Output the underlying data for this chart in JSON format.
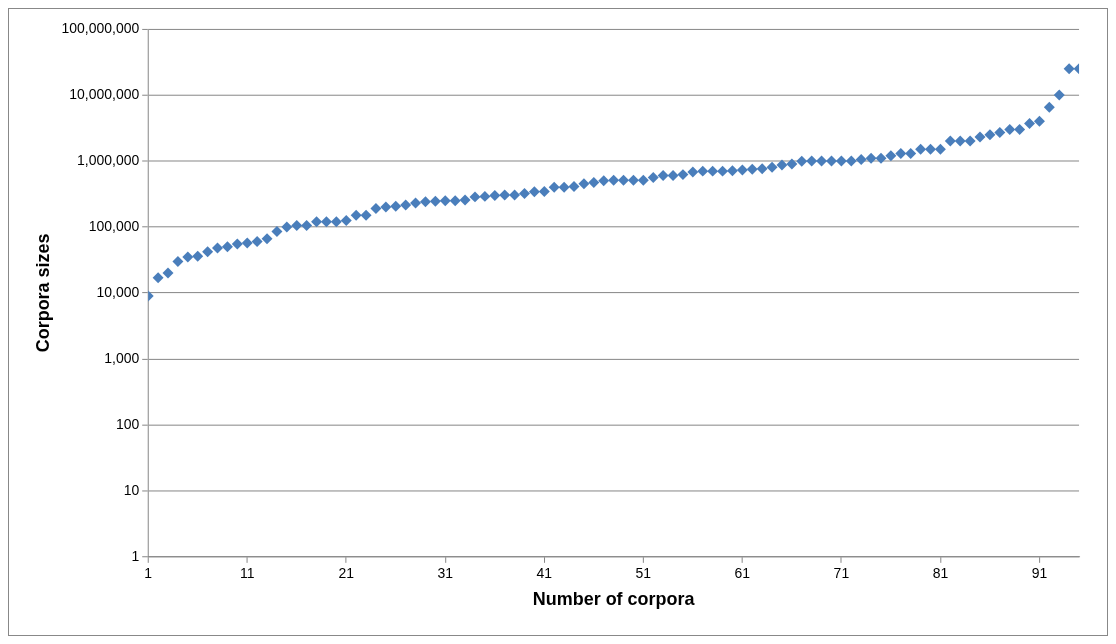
{
  "chart_data": {
    "type": "scatter",
    "xlabel": "Number of corpora",
    "ylabel": "Corpora sizes",
    "x": [
      1,
      2,
      3,
      4,
      5,
      6,
      7,
      8,
      9,
      10,
      11,
      12,
      13,
      14,
      15,
      16,
      17,
      18,
      19,
      20,
      21,
      22,
      23,
      24,
      25,
      26,
      27,
      28,
      29,
      30,
      31,
      32,
      33,
      34,
      35,
      36,
      37,
      38,
      39,
      40,
      41,
      42,
      43,
      44,
      45,
      46,
      47,
      48,
      49,
      50,
      51,
      52,
      53,
      54,
      55,
      56,
      57,
      58,
      59,
      60,
      61,
      62,
      63,
      64,
      65,
      66,
      67,
      68,
      69,
      70,
      71,
      72,
      73,
      74,
      75,
      76,
      77,
      78,
      79,
      80,
      81,
      82,
      83,
      84,
      85,
      86,
      87,
      88,
      89,
      90,
      91,
      92,
      93,
      94,
      95
    ],
    "values": [
      9000,
      17000,
      20000,
      30000,
      35000,
      36000,
      42000,
      48000,
      50000,
      55000,
      57000,
      60000,
      66000,
      85000,
      100000,
      105000,
      105000,
      120000,
      120000,
      120000,
      125000,
      150000,
      150000,
      190000,
      200000,
      205000,
      215000,
      230000,
      240000,
      245000,
      250000,
      250000,
      255000,
      285000,
      290000,
      300000,
      305000,
      305000,
      320000,
      340000,
      345000,
      400000,
      400000,
      410000,
      450000,
      470000,
      500000,
      510000,
      510000,
      510000,
      510000,
      560000,
      600000,
      600000,
      620000,
      680000,
      700000,
      700000,
      700000,
      710000,
      730000,
      750000,
      760000,
      800000,
      870000,
      900000,
      990000,
      1000000,
      1000000,
      1000000,
      1000000,
      1000000,
      1050000,
      1100000,
      1100000,
      1200000,
      1300000,
      1300000,
      1500000,
      1500000,
      1500000,
      2000000,
      2000000,
      2000000,
      2300000,
      2500000,
      2700000,
      3000000,
      3000000,
      3700000,
      4000000,
      6500000,
      10000000,
      25000000,
      25000000
    ],
    "color": "#4a7ebb",
    "marker": "diamond",
    "log": "y",
    "grid": "y",
    "legend": false,
    "xlim": [
      1,
      95
    ],
    "xticks": [
      1,
      11,
      21,
      31,
      41,
      51,
      61,
      71,
      81,
      91
    ],
    "ylim": [
      1,
      100000000
    ],
    "yticks": [
      {
        "value": 1,
        "label": "1"
      },
      {
        "value": 10,
        "label": "10"
      },
      {
        "value": 100,
        "label": "100"
      },
      {
        "value": 1000,
        "label": "1,000"
      },
      {
        "value": 10000,
        "label": "10,000"
      },
      {
        "value": 100000,
        "label": "100,000"
      },
      {
        "value": 1000000,
        "label": "1,000,000"
      },
      {
        "value": 10000000,
        "label": "10,000,000"
      },
      {
        "value": 100000000,
        "label": "100,000,000"
      }
    ]
  }
}
